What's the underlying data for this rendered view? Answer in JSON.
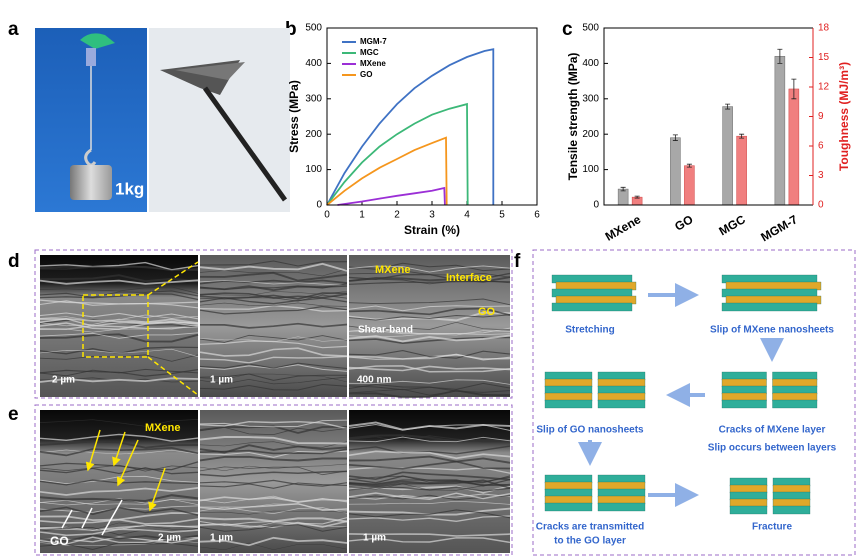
{
  "panel_labels": [
    "a",
    "b",
    "c",
    "d",
    "e",
    "f"
  ],
  "chart_data": [
    {
      "type": "line",
      "xlabel": "Strain (%)",
      "ylabel": "Stress (MPa)",
      "xlim": [
        0,
        6
      ],
      "xticks": [
        0,
        1,
        2,
        3,
        4,
        5,
        6
      ],
      "ylim": [
        0,
        500
      ],
      "yticks": [
        0,
        100,
        200,
        300,
        400,
        500
      ],
      "legend": "upper left",
      "series": [
        {
          "name": "MGM-7",
          "color": "#3f72c4",
          "x": [
            0,
            0.5,
            1,
            1.5,
            2,
            2.5,
            3,
            3.5,
            4,
            4.5,
            4.75,
            4.75
          ],
          "values": [
            0,
            90,
            165,
            230,
            285,
            330,
            365,
            395,
            418,
            435,
            440,
            0
          ]
        },
        {
          "name": "MGC",
          "color": "#3cb878",
          "x": [
            0,
            0.5,
            1,
            1.5,
            2,
            2.5,
            3,
            3.5,
            4,
            4.02
          ],
          "values": [
            0,
            65,
            120,
            165,
            200,
            230,
            255,
            272,
            285,
            0
          ]
        },
        {
          "name": "MXene",
          "color": "#9b2fd6",
          "x": [
            0.3,
            1,
            1.5,
            2,
            2.5,
            3,
            3.35,
            3.37
          ],
          "values": [
            0,
            10,
            18,
            26,
            33,
            40,
            48,
            0
          ]
        },
        {
          "name": "GO",
          "color": "#f5961d",
          "x": [
            0,
            0.5,
            1,
            1.5,
            2,
            2.5,
            3,
            3.4,
            3.42
          ],
          "values": [
            0,
            40,
            75,
            105,
            130,
            155,
            175,
            190,
            0
          ]
        }
      ]
    },
    {
      "type": "bar",
      "ylabel": "Tensile strength (MPa)",
      "y2label": "Toughness (MJ/m³)",
      "categories": [
        "MXene",
        "GO",
        "MGC",
        "MGM-7"
      ],
      "ylim": [
        0,
        500
      ],
      "yticks": [
        0,
        100,
        200,
        300,
        400,
        500
      ],
      "y2lim": [
        0,
        18
      ],
      "y2ticks": [
        0,
        3,
        6,
        9,
        12,
        15,
        18
      ],
      "series": [
        {
          "name": "Tensile strength",
          "color": "#a8a8a8",
          "values": [
            45,
            190,
            278,
            420
          ],
          "errors": [
            5,
            8,
            7,
            20
          ]
        },
        {
          "name": "Toughness",
          "color": "#f07f7f",
          "axis": "y2",
          "values": [
            0.8,
            4.0,
            7.0,
            11.8
          ],
          "errors": [
            0.1,
            0.15,
            0.2,
            1.0
          ]
        }
      ]
    }
  ],
  "photo_a": {
    "load": "1kg"
  },
  "sem_d": {
    "mxene": "MXene",
    "interface": "Interface",
    "shear_band": "Shear-band",
    "go": "GO",
    "scale_1": "2 µm",
    "scale_2": "1 µm",
    "scale_3": "400 nm"
  },
  "sem_e": {
    "mxene": "MXene",
    "go": "GO",
    "scale_1": "2 µm",
    "scale_2": "1 µm",
    "scale_3": "1 µm"
  },
  "diagram_f": {
    "steps": [
      "Stretching",
      "Slip of MXene nanosheets",
      "Cracks of MXene layer",
      "Slip occurs between layers",
      "Slip of GO nanosheets",
      "Cracks are transmitted",
      "to the GO layer",
      "Fracture"
    ]
  }
}
